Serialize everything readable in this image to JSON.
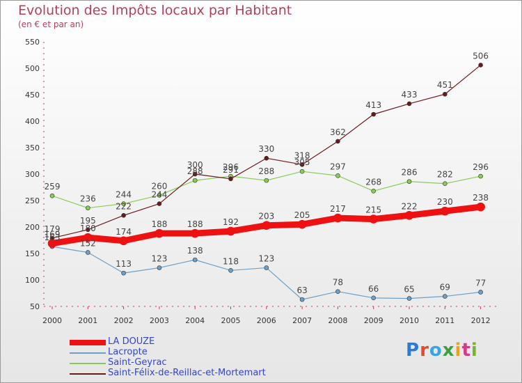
{
  "header": {
    "title": "Evolution des Impôts locaux par Habitant",
    "subtitle": "(en € et par an)"
  },
  "logo": {
    "text": "Proxiti"
  },
  "chart_data": {
    "type": "line",
    "title": "Evolution des Impôts locaux par Habitant",
    "subtitle": "(en € et par an)",
    "xlabel": "",
    "ylabel": "",
    "x": [
      "2000",
      "2001",
      "2002",
      "2003",
      "2004",
      "2005",
      "2006",
      "2007",
      "2008",
      "2009",
      "2010",
      "2011",
      "2012"
    ],
    "ylim": [
      50,
      550
    ],
    "yticks": [
      50,
      100,
      150,
      200,
      250,
      300,
      350,
      400,
      450,
      500,
      550
    ],
    "grid": false,
    "legend": "bottom-left",
    "series": [
      {
        "name": "LA DOUZE",
        "color": "#ee1111",
        "width": 9,
        "values": [
          169,
          180,
          174,
          188,
          188,
          192,
          203,
          205,
          217,
          215,
          222,
          230,
          238
        ],
        "labels": [
          "169",
          "180",
          "174",
          "188",
          "188",
          "192",
          "203",
          "205",
          "217",
          "215",
          "222",
          "230",
          "238"
        ]
      },
      {
        "name": "Lacropte",
        "color": "#6da0c8",
        "width": 1.2,
        "values": [
          163,
          152,
          113,
          123,
          138,
          118,
          123,
          63,
          78,
          66,
          65,
          69,
          77
        ],
        "labels": [
          "163",
          "152",
          "113",
          "123",
          "138",
          "118",
          "123",
          "63",
          "78",
          "66",
          "65",
          "69",
          "77"
        ]
      },
      {
        "name": "Saint-Geyrac",
        "color": "#88cc55",
        "width": 1.2,
        "values": [
          259,
          236,
          244,
          260,
          288,
          296,
          288,
          305,
          297,
          268,
          286,
          282,
          296
        ],
        "labels": [
          "259",
          "236",
          "244",
          "260",
          "288",
          "296",
          "288",
          "305",
          "297",
          "268",
          "286",
          "282",
          "296"
        ]
      },
      {
        "name": "Saint-Félix-de-Reillac-et-Mortemart",
        "color": "#6b1a1a",
        "width": 1.2,
        "values": [
          179,
          195,
          222,
          244,
          300,
          291,
          330,
          318,
          362,
          413,
          433,
          451,
          506
        ],
        "labels": [
          "179",
          "195",
          "222",
          "244",
          "300",
          "291",
          "330",
          "318",
          "362",
          "413",
          "433",
          "451",
          "506"
        ]
      }
    ]
  }
}
